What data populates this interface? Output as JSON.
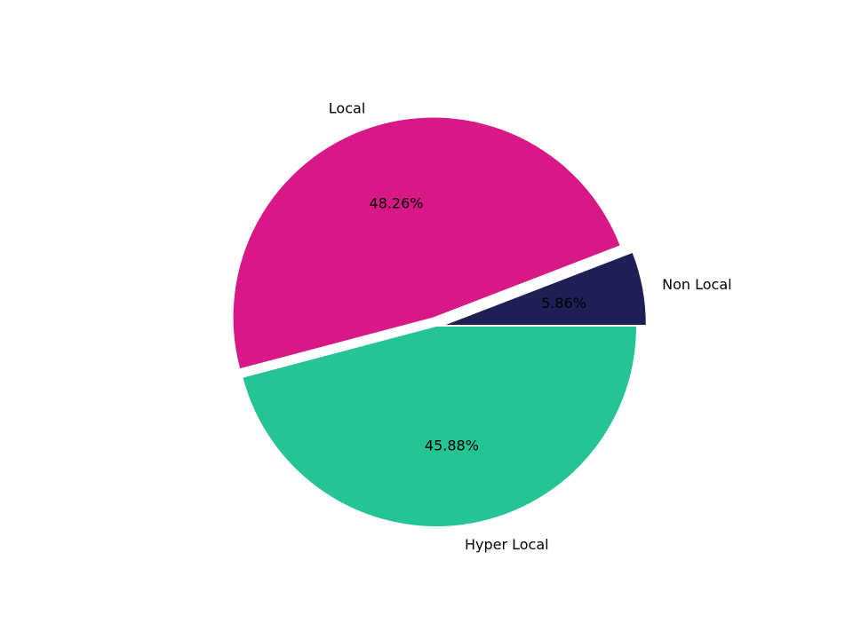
{
  "chart_data": {
    "type": "pie",
    "title": "",
    "labels": [
      "Non Local",
      "Local",
      "Hyper Local"
    ],
    "values": [
      5.86,
      48.26,
      45.88
    ],
    "percent_labels": [
      "5.86%",
      "48.26%",
      "45.88%"
    ],
    "colors": [
      "#1f1f55",
      "#d81886",
      "#25c494"
    ],
    "exploded": [
      true,
      true,
      false
    ],
    "start_angle_deg": 0,
    "direction": "counterclockwise",
    "legend": "none"
  }
}
